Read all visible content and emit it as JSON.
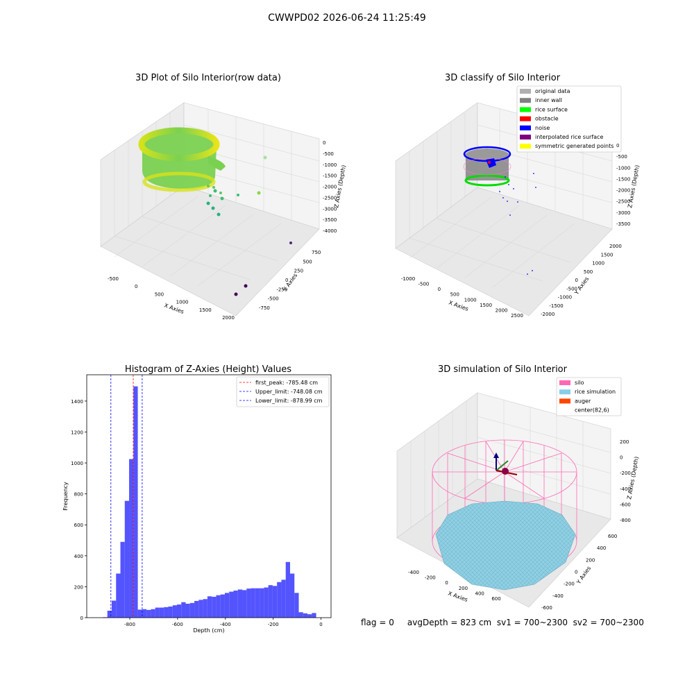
{
  "suptitle": "CWWPD02 2026-06-24 11:25:49",
  "status_text": "flag = 0     avgDepth = 823 cm  sv1 = 700~2300  sv2 = 700~2300",
  "chart_data": [
    {
      "type": "scatter3d",
      "title": "3D Plot of Silo Interior(row data)",
      "xlabel": "X Axies",
      "ylabel": "Y Axies",
      "zlabel": "Z Axies (Depth)",
      "x_ticks": [
        -500,
        0,
        500,
        1000,
        1500,
        2000
      ],
      "y_ticks": [
        -750,
        -500,
        -250,
        0,
        250,
        500,
        750
      ],
      "z_ticks": [
        0,
        -500,
        -1000,
        -1500,
        -2000,
        -2500,
        -3000,
        -3500,
        -4000
      ],
      "colormap": "viridis",
      "bulk": "dense ring of points near top, yellow-green",
      "outliers_color": [
        "#a8e0a0",
        "#8bd648",
        "#5ec962",
        "#3fbc73",
        "#2ab07f",
        "#440154",
        "#482878"
      ]
    },
    {
      "type": "scatter3d",
      "title": "3D classify of Silo Interior",
      "xlabel": "X Axies",
      "ylabel": "Y Axies",
      "zlabel": "Z Axies (Depth)",
      "x_ticks": [
        -1000,
        -500,
        0,
        500,
        1000,
        1500,
        2000,
        2500
      ],
      "y_ticks": [
        -2000,
        -1500,
        -1000,
        -500,
        0,
        500,
        1000,
        1500,
        2000
      ],
      "z_ticks": [
        0,
        -500,
        -1000,
        -1500,
        -2000,
        -2500,
        -3000,
        -3500
      ],
      "legend_position": "top-right",
      "legend": [
        {
          "label": "original data",
          "color": "#b0b0b0"
        },
        {
          "label": "inner wall",
          "color": "#808080"
        },
        {
          "label": "rice surface",
          "color": "#00ff00"
        },
        {
          "label": "obstacle",
          "color": "#ff0000"
        },
        {
          "label": "noise",
          "color": "#0000ff"
        },
        {
          "label": "interpolated rice surface",
          "color": "#800080"
        },
        {
          "label": "symmetric generated points",
          "color": "#ffff00"
        }
      ]
    },
    {
      "type": "bar",
      "title": "Histogram of Z-Axies (Height) Values",
      "xlabel": "Depth (cm)",
      "ylabel": "Frequency",
      "xlim": [
        -980,
        42
      ],
      "ylim": [
        0,
        1570
      ],
      "x_ticks": [
        -800,
        -600,
        -400,
        -200,
        0
      ],
      "y_ticks": [
        0,
        200,
        400,
        600,
        800,
        1000,
        1200,
        1400
      ],
      "bar_color": "#4b4bff",
      "bin_start": -912,
      "bin_width": 18.2,
      "values": [
        3,
        45,
        110,
        285,
        490,
        755,
        1025,
        1495,
        52,
        55,
        50,
        55,
        65,
        65,
        68,
        72,
        80,
        85,
        100,
        90,
        95,
        108,
        115,
        120,
        138,
        135,
        145,
        150,
        160,
        168,
        175,
        182,
        178,
        188,
        190,
        190,
        190,
        195,
        210,
        205,
        230,
        245,
        360,
        285,
        160,
        35,
        28,
        22,
        30
      ],
      "vlines": [
        {
          "x": -785.48,
          "color": "#ff0000",
          "label": "first_peak: -785.48 cm"
        },
        {
          "x": -748.08,
          "color": "#0000ff",
          "label": "Upper_limit: -748.08 cm"
        },
        {
          "x": -878.99,
          "color": "#0000ff",
          "label": "Lower_limit: -878.99 cm"
        }
      ],
      "legend_position": "top-right"
    },
    {
      "type": "surface3d",
      "title": "3D simulation of Silo Interior",
      "xlabel": "X Axies",
      "ylabel": "Y Axies",
      "zlabel": "Z Axies (Depth)",
      "x_ticks": [
        -400,
        -200,
        0,
        200,
        400,
        600
      ],
      "y_ticks": [
        -600,
        -400,
        -200,
        0,
        200,
        400,
        600
      ],
      "z_ticks": [
        200,
        0,
        -200,
        -400,
        -600,
        -800
      ],
      "legend_position": "top-right",
      "legend": [
        {
          "label": "silo",
          "color": "#ff69b4"
        },
        {
          "label": "rice simulation",
          "color": "#87ceeb"
        },
        {
          "label": "auger",
          "color": "#ff4500"
        },
        {
          "label": "center(82,6)",
          "color": ""
        }
      ]
    }
  ]
}
